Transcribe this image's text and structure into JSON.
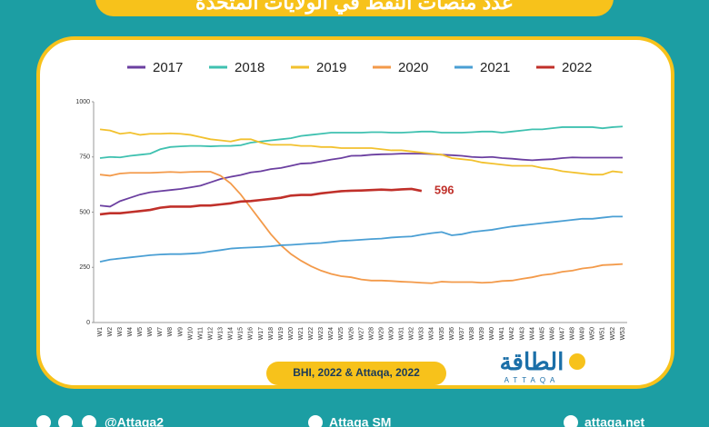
{
  "chart_data": {
    "type": "line",
    "title": "عدد منصات النفط في الولايات المتحدة",
    "source": "BHI, 2022 & Attaqa, 2022",
    "logo": {
      "name": "الطاقة",
      "latin": "ATTAQA"
    },
    "footer": [
      "@Attaqa2",
      "Attaqa SM",
      "attaqa.net"
    ],
    "categories": [
      "W1",
      "W2",
      "W3",
      "W4",
      "W5",
      "W6",
      "W7",
      "W8",
      "W9",
      "W10",
      "W11",
      "W12",
      "W13",
      "W14",
      "W15",
      "W16",
      "W17",
      "W18",
      "W19",
      "W20",
      "W21",
      "W22",
      "W23",
      "W24",
      "W25",
      "W26",
      "W27",
      "W28",
      "W29",
      "W30",
      "W31",
      "W32",
      "W33",
      "W34",
      "W35",
      "W36",
      "W37",
      "W38",
      "W39",
      "W40",
      "W41",
      "W42",
      "W43",
      "W44",
      "W45",
      "W46",
      "W47",
      "W48",
      "W49",
      "W50",
      "W51",
      "W52",
      "W53"
    ],
    "ylim": [
      0,
      1000
    ],
    "yticks": [
      0,
      250,
      500,
      750,
      1000
    ],
    "grid": false,
    "legend": "top",
    "series": [
      {
        "name": "2017",
        "color": "#6b3fa0",
        "values": [
          530,
          525,
          550,
          565,
          580,
          590,
          595,
          600,
          605,
          612,
          620,
          635,
          650,
          660,
          668,
          680,
          685,
          695,
          700,
          710,
          720,
          722,
          730,
          738,
          745,
          755,
          756,
          760,
          762,
          763,
          765,
          765,
          765,
          763,
          760,
          758,
          755,
          750,
          748,
          750,
          745,
          742,
          738,
          735,
          738,
          740,
          745,
          748,
          747,
          747,
          747,
          747,
          747
        ]
      },
      {
        "name": "2018",
        "color": "#3fc1b0",
        "values": [
          745,
          750,
          748,
          755,
          760,
          765,
          785,
          795,
          798,
          800,
          800,
          798,
          800,
          800,
          803,
          815,
          820,
          825,
          830,
          835,
          845,
          850,
          855,
          860,
          860,
          860,
          860,
          862,
          862,
          860,
          860,
          862,
          865,
          865,
          860,
          860,
          860,
          862,
          865,
          865,
          860,
          865,
          870,
          875,
          875,
          880,
          885,
          885,
          885,
          885,
          880,
          885,
          888
        ]
      },
      {
        "name": "2019",
        "color": "#f2c12e",
        "values": [
          875,
          870,
          855,
          860,
          850,
          855,
          855,
          857,
          855,
          850,
          840,
          830,
          825,
          820,
          830,
          830,
          815,
          805,
          805,
          805,
          800,
          800,
          795,
          795,
          790,
          790,
          790,
          790,
          785,
          780,
          780,
          775,
          770,
          765,
          760,
          745,
          740,
          735,
          725,
          720,
          715,
          710,
          710,
          710,
          700,
          695,
          685,
          680,
          675,
          670,
          670,
          685,
          680
        ]
      },
      {
        "name": "2020",
        "color": "#f39a4a",
        "values": [
          670,
          665,
          675,
          678,
          678,
          678,
          680,
          682,
          680,
          682,
          683,
          683,
          665,
          630,
          580,
          520,
          460,
          400,
          350,
          310,
          280,
          255,
          235,
          220,
          210,
          205,
          195,
          190,
          190,
          188,
          185,
          183,
          180,
          178,
          185,
          183,
          183,
          183,
          180,
          182,
          188,
          190,
          198,
          205,
          215,
          220,
          230,
          235,
          245,
          250,
          260,
          262,
          265
        ]
      },
      {
        "name": "2021",
        "color": "#4a9fd4",
        "values": [
          275,
          285,
          290,
          295,
          300,
          305,
          308,
          310,
          310,
          312,
          315,
          322,
          328,
          335,
          338,
          340,
          342,
          345,
          350,
          352,
          355,
          358,
          360,
          365,
          370,
          372,
          375,
          378,
          380,
          385,
          388,
          390,
          398,
          405,
          410,
          395,
          400,
          410,
          415,
          420,
          428,
          435,
          440,
          445,
          450,
          455,
          460,
          465,
          470,
          470,
          475,
          480,
          480
        ]
      },
      {
        "name": "2022",
        "color": "#c0302a",
        "label_last": true,
        "values": [
          490,
          495,
          495,
          500,
          505,
          510,
          520,
          525,
          525,
          525,
          530,
          530,
          535,
          540,
          548,
          550,
          555,
          560,
          565,
          575,
          578,
          578,
          585,
          590,
          595,
          597,
          598,
          600,
          602,
          600,
          603,
          605,
          596,
          null,
          null,
          null,
          null,
          null,
          null,
          null,
          null,
          null,
          null,
          null,
          null,
          null,
          null,
          null,
          null,
          null,
          null,
          null,
          null
        ]
      }
    ]
  }
}
